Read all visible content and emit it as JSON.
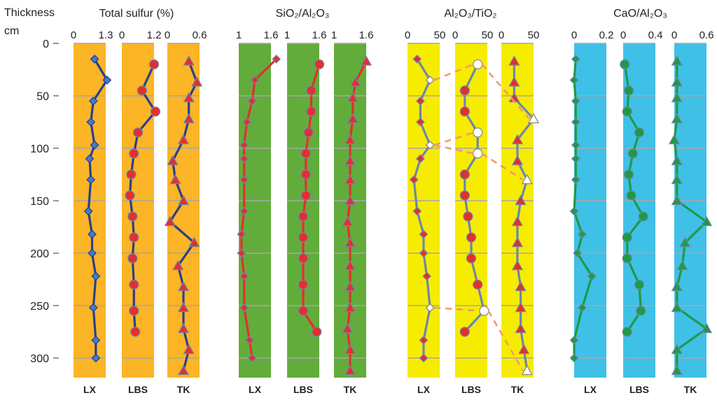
{
  "header": {
    "thickness_label": "Thickness",
    "unit_label": "cm"
  },
  "y_axis": {
    "ticks": [
      "0",
      "50",
      "100",
      "150",
      "200",
      "250",
      "300"
    ],
    "range": [
      0,
      320
    ]
  },
  "colors": {
    "orange": "#fbb526",
    "green": "#62ac3c",
    "yellow": "#f6ec00",
    "cyan": "#3fc0e7",
    "navy_line": "#2e3e8c",
    "red_line": "#e62e2e",
    "gray_line": "#6f86a6",
    "green_line": "#1e9a47",
    "dash": "#f29a6b",
    "grid": "#a7a7a7"
  },
  "chart_data": [
    {
      "type": "line",
      "title": "Total sulfur (%)",
      "panels": [
        {
          "label": "LX",
          "xticks": [
            "0",
            "1.3"
          ],
          "xlim": [
            0,
            1.3
          ],
          "bg": "#fbb526",
          "marker": "diamond",
          "marker_color": "#3a7fd0",
          "line_color": "#2e3e8c",
          "points": [
            [
              0.85,
              15
            ],
            [
              1.35,
              35
            ],
            [
              0.8,
              55
            ],
            [
              0.7,
              75
            ],
            [
              0.85,
              97
            ],
            [
              0.65,
              110
            ],
            [
              0.7,
              130
            ],
            [
              0.6,
              160
            ],
            [
              0.75,
              182
            ],
            [
              0.75,
              200
            ],
            [
              0.9,
              222
            ],
            [
              0.8,
              252
            ],
            [
              0.9,
              283
            ],
            [
              0.9,
              300
            ]
          ]
        },
        {
          "label": "LBS",
          "xticks": [
            "0",
            "1.2"
          ],
          "xlim": [
            0,
            1.2
          ],
          "bg": "#fbb526",
          "marker": "circle",
          "marker_color": "#e62e2e",
          "line_color": "#2e3e8c",
          "points": [
            [
              1.2,
              20
            ],
            [
              0.75,
              45
            ],
            [
              1.25,
              65
            ],
            [
              0.6,
              85
            ],
            [
              0.45,
              105
            ],
            [
              0.35,
              125
            ],
            [
              0.3,
              145
            ],
            [
              0.4,
              165
            ],
            [
              0.45,
              185
            ],
            [
              0.4,
              205
            ],
            [
              0.45,
              230
            ],
            [
              0.45,
              255
            ],
            [
              0.5,
              275
            ]
          ]
        },
        {
          "label": "TK",
          "xticks": [
            "0",
            "0.6"
          ],
          "xlim": [
            0,
            0.6
          ],
          "bg": "#fbb526",
          "marker": "triangle",
          "marker_color": "#e62e2e",
          "line_color": "#2e3e8c",
          "points": [
            [
              0.4,
              17
            ],
            [
              0.55,
              37
            ],
            [
              0.4,
              52
            ],
            [
              0.4,
              72
            ],
            [
              0.3,
              92
            ],
            [
              0.1,
              112
            ],
            [
              0.15,
              130
            ],
            [
              0.3,
              150
            ],
            [
              0.05,
              170
            ],
            [
              0.5,
              190
            ],
            [
              0.2,
              212
            ],
            [
              0.3,
              232
            ],
            [
              0.3,
              252
            ],
            [
              0.3,
              272
            ],
            [
              0.4,
              292
            ],
            [
              0.3,
              312
            ]
          ]
        }
      ]
    },
    {
      "type": "line",
      "title": "SiO₂/Al₂O₃",
      "panels": [
        {
          "label": "LX",
          "xticks": [
            "1",
            "1.6"
          ],
          "xlim": [
            1,
            1.6
          ],
          "bg": "#62ac3c",
          "marker": "diamond",
          "marker_color": "#e62e2e",
          "line_color": "#e62e2e",
          "points": [
            [
              1.7,
              15
            ],
            [
              1.3,
              35
            ],
            [
              1.25,
              55
            ],
            [
              1.15,
              75
            ],
            [
              1.1,
              97
            ],
            [
              1.1,
              110
            ],
            [
              1.1,
              130
            ],
            [
              1.1,
              160
            ],
            [
              1.05,
              182
            ],
            [
              1.05,
              200
            ],
            [
              1.1,
              222
            ],
            [
              1.1,
              252
            ],
            [
              1.2,
              283
            ],
            [
              1.25,
              300
            ]
          ]
        },
        {
          "label": "LBS",
          "xticks": [
            "1",
            "1.6"
          ],
          "xlim": [
            1,
            1.6
          ],
          "bg": "#62ac3c",
          "marker": "circle",
          "marker_color": "#e62e2e",
          "line_color": "#e62e2e",
          "points": [
            [
              1.6,
              20
            ],
            [
              1.45,
              45
            ],
            [
              1.45,
              65
            ],
            [
              1.4,
              85
            ],
            [
              1.35,
              105
            ],
            [
              1.35,
              125
            ],
            [
              1.35,
              145
            ],
            [
              1.3,
              165
            ],
            [
              1.3,
              185
            ],
            [
              1.3,
              205
            ],
            [
              1.3,
              230
            ],
            [
              1.3,
              255
            ],
            [
              1.55,
              275
            ]
          ]
        },
        {
          "label": "TK",
          "xticks": [
            "1",
            "1.6"
          ],
          "xlim": [
            1,
            1.6
          ],
          "bg": "#62ac3c",
          "marker": "triangle",
          "marker_color": "#e62e2e",
          "line_color": "#e62e2e",
          "points": [
            [
              1.6,
              17
            ],
            [
              1.4,
              37
            ],
            [
              1.35,
              52
            ],
            [
              1.35,
              72
            ],
            [
              1.3,
              92
            ],
            [
              1.3,
              112
            ],
            [
              1.3,
              130
            ],
            [
              1.3,
              150
            ],
            [
              1.25,
              170
            ],
            [
              1.3,
              190
            ],
            [
              1.3,
              212
            ],
            [
              1.3,
              232
            ],
            [
              1.3,
              252
            ],
            [
              1.25,
              272
            ],
            [
              1.3,
              292
            ],
            [
              1.3,
              312
            ]
          ]
        }
      ]
    },
    {
      "type": "line",
      "title": "Al₂O₃/TiO₂",
      "panels": [
        {
          "label": "LX",
          "xticks": [
            "0",
            "50"
          ],
          "xlim": [
            0,
            50
          ],
          "bg": "#f6ec00",
          "marker": "diamond",
          "marker_color": "#e62e2e",
          "line_color": "#6f86a6",
          "points": [
            [
              15,
              15
            ],
            [
              35,
              35
            ],
            [
              20,
              55
            ],
            [
              20,
              75
            ],
            [
              35,
              97
            ],
            [
              20,
              110
            ],
            [
              10,
              130
            ],
            [
              15,
              160
            ],
            [
              25,
              182
            ],
            [
              25,
              200
            ],
            [
              30,
              222
            ],
            [
              35,
              252
            ],
            [
              25,
              283
            ],
            [
              25,
              300
            ]
          ],
          "hollow_depths": [
            35,
            97,
            252
          ]
        },
        {
          "label": "LBS",
          "xticks": [
            "0",
            "50"
          ],
          "xlim": [
            0,
            50
          ],
          "bg": "#f6ec00",
          "marker": "circle",
          "marker_color": "#e62e2e",
          "line_color": "#6f86a6",
          "points": [
            [
              35,
              20
            ],
            [
              15,
              45
            ],
            [
              15,
              65
            ],
            [
              35,
              85
            ],
            [
              35,
              105
            ],
            [
              15,
              125
            ],
            [
              15,
              145
            ],
            [
              20,
              165
            ],
            [
              25,
              185
            ],
            [
              25,
              205
            ],
            [
              35,
              230
            ],
            [
              45,
              255
            ],
            [
              15,
              275
            ]
          ],
          "hollow_depths": [
            20,
            85,
            105,
            255
          ]
        },
        {
          "label": "TK",
          "xticks": [
            "0",
            "50"
          ],
          "xlim": [
            0,
            50
          ],
          "bg": "#f6ec00",
          "marker": "triangle",
          "marker_color": "#e62e2e",
          "line_color": "#6f86a6",
          "points": [
            [
              20,
              17
            ],
            [
              20,
              37
            ],
            [
              20,
              52
            ],
            [
              50,
              72
            ],
            [
              25,
              92
            ],
            [
              25,
              112
            ],
            [
              40,
              130
            ],
            [
              30,
              150
            ],
            [
              25,
              170
            ],
            [
              25,
              190
            ],
            [
              25,
              212
            ],
            [
              30,
              232
            ],
            [
              30,
              252
            ],
            [
              30,
              272
            ],
            [
              35,
              292
            ],
            [
              40,
              312
            ]
          ],
          "hollow_depths": [
            72,
            130,
            312
          ]
        }
      ],
      "links": [
        {
          "from": [
            "LX",
            35
          ],
          "to": [
            "LBS",
            20
          ]
        },
        {
          "from": [
            "LBS",
            20
          ],
          "to": [
            "TK",
            72
          ]
        },
        {
          "from": [
            "LX",
            97
          ],
          "to": [
            "LBS",
            85
          ]
        },
        {
          "from": [
            "LX",
            97
          ],
          "to": [
            "LBS",
            105
          ]
        },
        {
          "from": [
            "LBS",
            105
          ],
          "to": [
            "TK",
            130
          ]
        },
        {
          "from": [
            "LX",
            252
          ],
          "to": [
            "LBS",
            255
          ]
        },
        {
          "from": [
            "LBS",
            255
          ],
          "to": [
            "TK",
            312
          ]
        }
      ]
    },
    {
      "type": "line",
      "title": "CaO/Al₂O₃",
      "panels": [
        {
          "label": "LX",
          "xticks": [
            "0",
            "0.2"
          ],
          "xlim": [
            0,
            0.2
          ],
          "bg": "#3fc0e7",
          "marker": "diamond",
          "marker_color": "#1e9a47",
          "line_color": "#1e9a47",
          "points": [
            [
              0.01,
              15
            ],
            [
              0.0,
              35
            ],
            [
              0.01,
              55
            ],
            [
              0.01,
              75
            ],
            [
              0.01,
              97
            ],
            [
              0.01,
              110
            ],
            [
              0.01,
              130
            ],
            [
              0.0,
              160
            ],
            [
              0.05,
              182
            ],
            [
              0.02,
              200
            ],
            [
              0.11,
              222
            ],
            [
              0.05,
              252
            ],
            [
              0.0,
              283
            ],
            [
              0.0,
              300
            ]
          ]
        },
        {
          "label": "LBS",
          "xticks": [
            "0",
            "0.4"
          ],
          "xlim": [
            0,
            0.4
          ],
          "bg": "#3fc0e7",
          "marker": "circle",
          "marker_color": "#1e9a47",
          "line_color": "#1e9a47",
          "points": [
            [
              0.02,
              20
            ],
            [
              0.07,
              45
            ],
            [
              0.05,
              65
            ],
            [
              0.2,
              85
            ],
            [
              0.12,
              105
            ],
            [
              0.07,
              125
            ],
            [
              0.1,
              145
            ],
            [
              0.25,
              165
            ],
            [
              0.05,
              185
            ],
            [
              0.05,
              205
            ],
            [
              0.2,
              230
            ],
            [
              0.22,
              255
            ],
            [
              0.05,
              275
            ]
          ]
        },
        {
          "label": "TK",
          "xticks": [
            "0",
            "0.6"
          ],
          "xlim": [
            0,
            0.6
          ],
          "bg": "#3fc0e7",
          "marker": "triangle",
          "marker_color": "#1e9a47",
          "line_color": "#1e9a47",
          "points": [
            [
              0.05,
              17
            ],
            [
              0.05,
              37
            ],
            [
              0.05,
              52
            ],
            [
              0.05,
              72
            ],
            [
              0.0,
              92
            ],
            [
              0.05,
              112
            ],
            [
              0.05,
              130
            ],
            [
              0.05,
              150
            ],
            [
              0.6,
              170
            ],
            [
              0.2,
              190
            ],
            [
              0.15,
              212
            ],
            [
              0.05,
              232
            ],
            [
              0.05,
              252
            ],
            [
              0.6,
              272
            ],
            [
              0.05,
              292
            ],
            [
              0.05,
              312
            ]
          ]
        }
      ]
    }
  ]
}
